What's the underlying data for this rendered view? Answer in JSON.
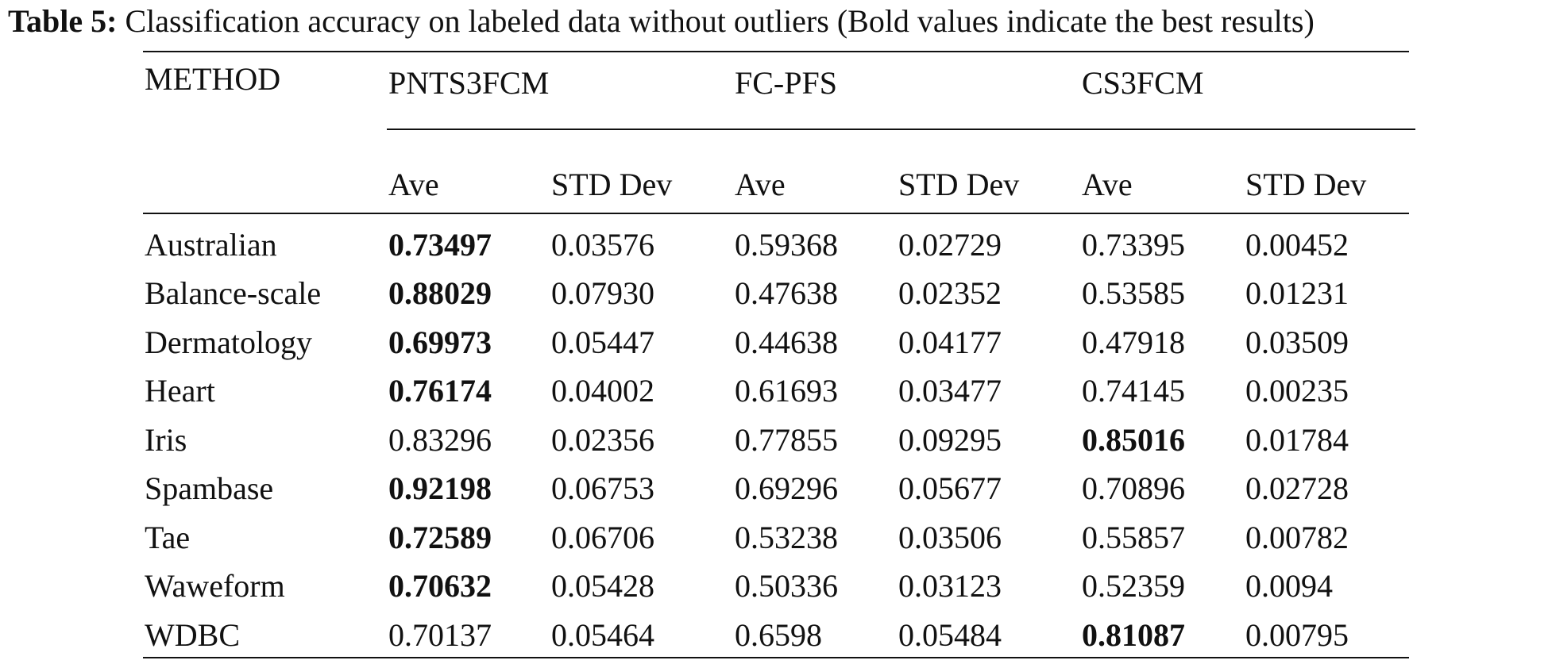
{
  "caption": {
    "label": "Table 5:",
    "text": " Classification accuracy on labeled data without outliers (Bold values indicate the best results)"
  },
  "table": {
    "method_header": "METHOD",
    "groups": [
      "PNTS3FCM",
      "FC-PFS",
      "CS3FCM"
    ],
    "subheaders": [
      "Ave",
      "STD Dev",
      "Ave",
      "STD Dev",
      "Ave",
      "STD Dev"
    ],
    "rows": [
      {
        "method": "Australian",
        "values": [
          "0.73497",
          "0.03576",
          "0.59368",
          "0.02729",
          "0.73395",
          "0.00452"
        ],
        "best_col": 0
      },
      {
        "method": "Balance-scale",
        "values": [
          "0.88029",
          "0.07930",
          "0.47638",
          "0.02352",
          "0.53585",
          "0.01231"
        ],
        "best_col": 0
      },
      {
        "method": "Dermatology",
        "values": [
          "0.69973",
          "0.05447",
          "0.44638",
          "0.04177",
          "0.47918",
          "0.03509"
        ],
        "best_col": 0
      },
      {
        "method": "Heart",
        "values": [
          "0.76174",
          "0.04002",
          "0.61693",
          "0.03477",
          "0.74145",
          "0.00235"
        ],
        "best_col": 0
      },
      {
        "method": "Iris",
        "values": [
          "0.83296",
          "0.02356",
          "0.77855",
          "0.09295",
          "0.85016",
          "0.01784"
        ],
        "best_col": 4
      },
      {
        "method": "Spambase",
        "values": [
          "0.92198",
          "0.06753",
          "0.69296",
          "0.05677",
          "0.70896",
          "0.02728"
        ],
        "best_col": 0
      },
      {
        "method": "Tae",
        "values": [
          "0.72589",
          "0.06706",
          "0.53238",
          "0.03506",
          "0.55857",
          "0.00782"
        ],
        "best_col": 0
      },
      {
        "method": "Waweform",
        "values": [
          "0.70632",
          "0.05428",
          "0.50336",
          "0.03123",
          "0.52359",
          "0.0094"
        ],
        "best_col": 0
      },
      {
        "method": "WDBC",
        "values": [
          "0.70137",
          "0.05464",
          "0.6598",
          "0.05484",
          "0.81087",
          "0.00795"
        ],
        "best_col": 4
      }
    ]
  }
}
